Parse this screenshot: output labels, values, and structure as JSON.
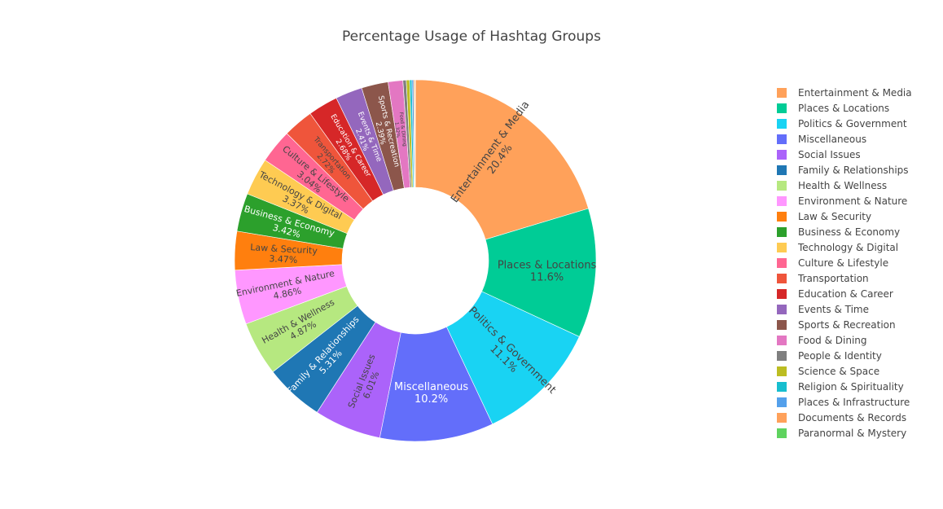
{
  "chart_data": {
    "type": "pie",
    "hole": true,
    "title": "Percentage Usage of Hashtag Groups",
    "legend_position": "right",
    "slices": [
      {
        "label": "Entertainment & Media",
        "value": 20.4,
        "text": "20.4%",
        "color": "#FFA15A",
        "text_color": "#444444"
      },
      {
        "label": "Places & Locations",
        "value": 11.6,
        "text": "11.6%",
        "color": "#00CC96",
        "text_color": "#444444"
      },
      {
        "label": "Politics & Government",
        "value": 11.1,
        "text": "11.1%",
        "color": "#19D3F3",
        "text_color": "#444444"
      },
      {
        "label": "Miscellaneous",
        "value": 10.2,
        "text": "10.2%",
        "color": "#636EFA",
        "text_color": "#ffffff"
      },
      {
        "label": "Social Issues",
        "value": 6.01,
        "text": "6.01%",
        "color": "#AB63FA",
        "text_color": "#444444"
      },
      {
        "label": "Family & Relationships",
        "value": 5.31,
        "text": "5.31%",
        "color": "#1F77B4",
        "text_color": "#ffffff"
      },
      {
        "label": "Health & Wellness",
        "value": 4.87,
        "text": "4.87%",
        "color": "#B6E880",
        "text_color": "#444444"
      },
      {
        "label": "Environment & Nature",
        "value": 4.86,
        "text": "4.86%",
        "color": "#FF97FF",
        "text_color": "#444444"
      },
      {
        "label": "Law & Security",
        "value": 3.47,
        "text": "3.47%",
        "color": "#FF7F0E",
        "text_color": "#444444"
      },
      {
        "label": "Business & Economy",
        "value": 3.42,
        "text": "3.42%",
        "color": "#2CA02C",
        "text_color": "#ffffff"
      },
      {
        "label": "Technology & Digital",
        "value": 3.37,
        "text": "3.37%",
        "color": "#FECB52",
        "text_color": "#444444"
      },
      {
        "label": "Culture & Lifestyle",
        "value": 3.04,
        "text": "3.04%",
        "color": "#FF6692",
        "text_color": "#444444"
      },
      {
        "label": "Transportation",
        "value": 2.72,
        "text": "2.72%",
        "color": "#EF553B",
        "text_color": "#444444"
      },
      {
        "label": "Education & Career",
        "value": 2.68,
        "text": "2.68%",
        "color": "#D62728",
        "text_color": "#ffffff"
      },
      {
        "label": "Events & Time",
        "value": 2.41,
        "text": "2.41%",
        "color": "#9467BD",
        "text_color": "#ffffff"
      },
      {
        "label": "Sports & Recreation",
        "value": 2.39,
        "text": "2.39%",
        "color": "#8C564B",
        "text_color": "#ffffff"
      },
      {
        "label": "Food & Dining",
        "value": 1.32,
        "text": "1.32%",
        "color": "#E377C2",
        "text_color": "#444444"
      },
      {
        "label": "People & Identity",
        "value": 0.3,
        "text": "",
        "color": "#7F7F7F",
        "text_color": "#444444"
      },
      {
        "label": "Science & Space",
        "value": 0.3,
        "text": "",
        "color": "#BCBD22",
        "text_color": "#444444"
      },
      {
        "label": "Religion & Spirituality",
        "value": 0.2,
        "text": "",
        "color": "#17BECF",
        "text_color": "#444444"
      },
      {
        "label": "Places & Infrastructure",
        "value": 0.15,
        "text": "",
        "color": "#54A0EB",
        "text_color": "#444444"
      },
      {
        "label": "Documents & Records",
        "value": 0.1,
        "text": "",
        "color": "#FFA15A",
        "text_color": "#444444"
      },
      {
        "label": "Paranormal & Mystery",
        "value": 0.05,
        "text": "",
        "color": "#5FD35F",
        "text_color": "#444444"
      }
    ]
  }
}
